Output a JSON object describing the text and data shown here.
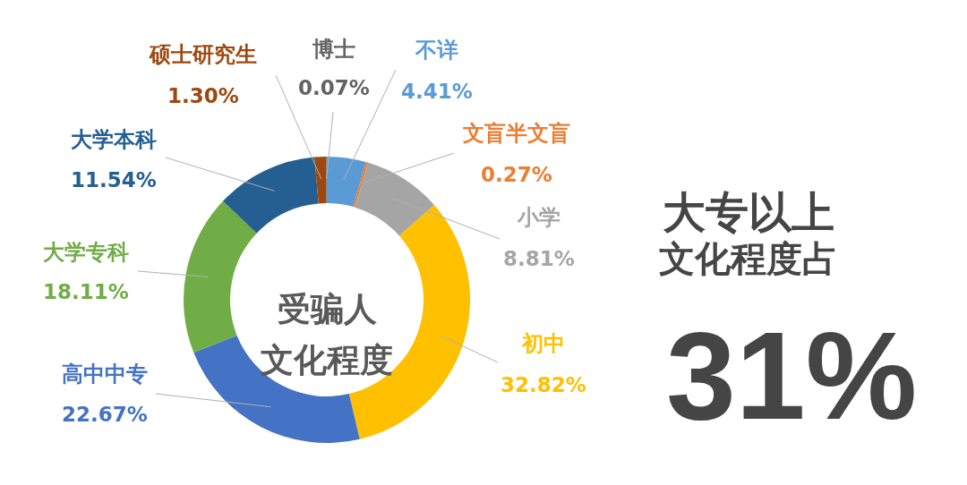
{
  "chart_data": {
    "type": "donut",
    "title": "受骗人文化程度",
    "categories": [
      "不详",
      "文盲半文盲",
      "小学",
      "初中",
      "高中中专",
      "大学专科",
      "大学本科",
      "硕士研究生",
      "博士"
    ],
    "values": [
      4.41,
      0.27,
      8.81,
      32.82,
      22.67,
      18.11,
      11.54,
      1.3,
      0.07
    ],
    "colors": [
      "#5b9bd5",
      "#ed7d31",
      "#a5a5a5",
      "#ffc000",
      "#4472c4",
      "#70ad47",
      "#255e91",
      "#9e480e",
      "#636363"
    ],
    "value_labels": [
      "4.41%",
      "0.27%",
      "8.81%",
      "32.82%",
      "22.67%",
      "18.11%",
      "11.54%",
      "1.30%",
      "0.07%"
    ],
    "annotations": [
      "大专以上",
      "文化程度占",
      "31%"
    ]
  }
}
